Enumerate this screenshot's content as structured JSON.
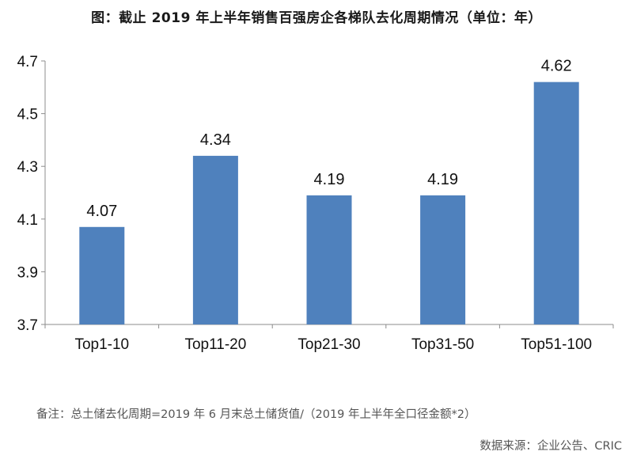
{
  "chart_data": {
    "type": "bar",
    "title": "图：截止 2019 年上半年销售百强房企各梯队去化周期情况（单位：年）",
    "categories": [
      "Top1-10",
      "Top11-20",
      "Top21-30",
      "Top31-50",
      "Top51-100"
    ],
    "values": [
      4.07,
      4.34,
      4.19,
      4.19,
      4.62
    ],
    "data_labels": [
      "4.07",
      "4.34",
      "4.19",
      "4.19",
      "4.62"
    ],
    "ylim": [
      3.7,
      4.7
    ],
    "yticks": [
      "3.7",
      "3.9",
      "4.1",
      "4.3",
      "4.5",
      "4.7"
    ],
    "xlabel": "",
    "ylabel": "",
    "grid": false,
    "bar_color": "#4f81bd"
  },
  "footer": {
    "note": "备注：总土储去化周期=2019 年 6 月末总土储货值/（2019 年上半年全口径金额*2）",
    "source": "数据来源：企业公告、CRIC"
  }
}
